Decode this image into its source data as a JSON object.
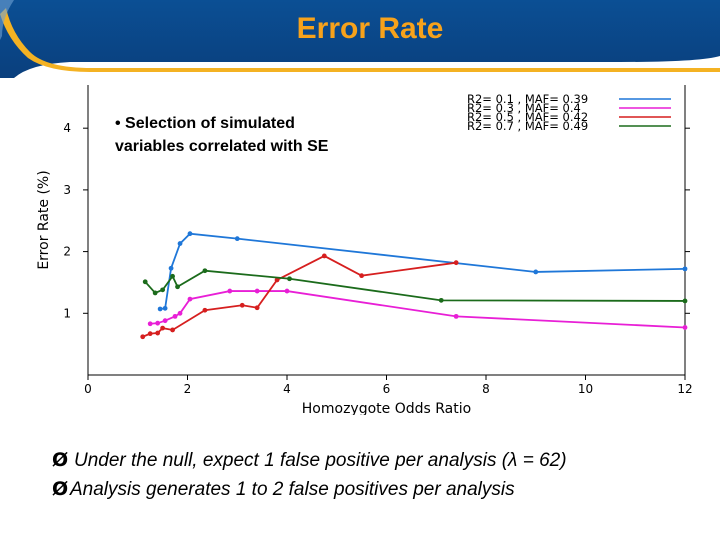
{
  "slide": {
    "title": "Error Rate",
    "bullets": [
      {
        "marker": "Ø",
        "text": "Under the null, expect 1 false positive per analysis (λ = 62)"
      },
      {
        "marker": "Ø",
        "text": "Analysis generates 1 to 2 false positives per analysis"
      }
    ]
  },
  "colors": {
    "header_blue": "#0a4c8f",
    "title_orange": "#f7a21b",
    "accent_yellow": "#f4b223"
  },
  "chart_data": {
    "type": "line",
    "xlabel": "Homozygote Odds Ratio",
    "ylabel": "Error Rate (%)",
    "xlim": [
      0,
      12
    ],
    "ylim": [
      0,
      4.7
    ],
    "xticks": [
      0,
      2,
      4,
      6,
      8,
      10,
      12
    ],
    "yticks": [
      1,
      2,
      3,
      4
    ],
    "annotation": "• Selection of simulated variables correlated with SE",
    "legend_position": "top-right",
    "series": [
      {
        "name": "R2= 0.1 , MAF= 0.39",
        "color": "#1f77d8",
        "x": [
          1.45,
          1.55,
          1.67,
          1.85,
          2.05,
          3.0,
          9.0,
          12.0
        ],
        "y": [
          1.07,
          1.08,
          1.73,
          2.13,
          2.29,
          2.21,
          1.67,
          1.72
        ]
      },
      {
        "name": "R2= 0.3 , MAF= 0.4",
        "color": "#e81fd6",
        "x": [
          1.25,
          1.4,
          1.55,
          1.75,
          1.85,
          2.05,
          2.85,
          3.4,
          4.0,
          7.4,
          12.0
        ],
        "y": [
          0.83,
          0.84,
          0.88,
          0.95,
          1.0,
          1.23,
          1.36,
          1.36,
          1.36,
          0.95,
          0.77
        ]
      },
      {
        "name": "R2= 0.5 , MAF= 0.42",
        "color": "#d61f1f",
        "x": [
          1.1,
          1.25,
          1.4,
          1.5,
          1.7,
          2.35,
          3.1,
          3.4,
          3.8,
          4.75,
          5.5,
          7.4
        ],
        "y": [
          0.62,
          0.67,
          0.68,
          0.76,
          0.73,
          1.05,
          1.13,
          1.09,
          1.54,
          1.93,
          1.61,
          1.82
        ]
      },
      {
        "name": "R2= 0.7 , MAF= 0.49",
        "color": "#1b6b1b",
        "x": [
          1.15,
          1.35,
          1.5,
          1.7,
          1.8,
          2.35,
          4.05,
          7.1,
          12.0
        ],
        "y": [
          1.51,
          1.33,
          1.38,
          1.6,
          1.43,
          1.69,
          1.56,
          1.21,
          1.2
        ]
      }
    ]
  }
}
